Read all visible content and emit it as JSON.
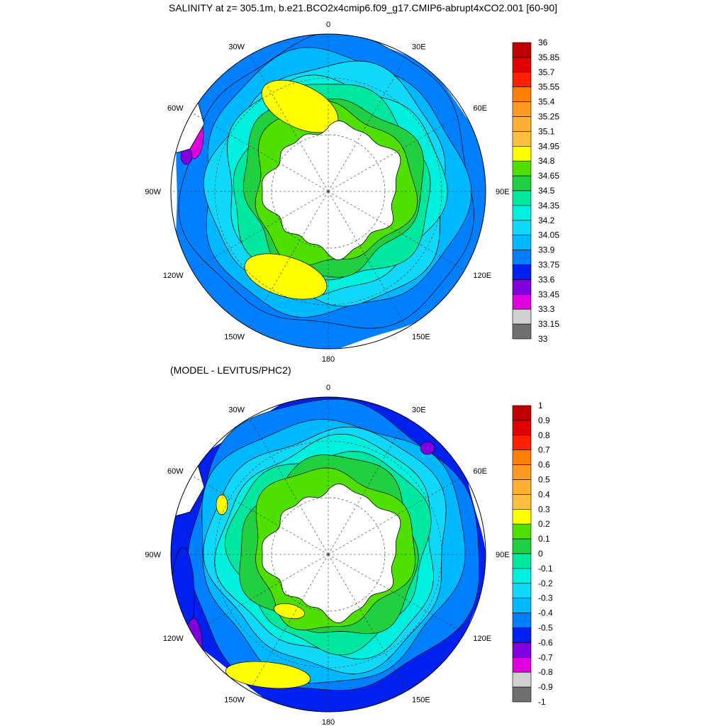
{
  "panels": [
    {
      "title": "SALINITY at z= 305.1m, b.e21.BCO2x4cmip6.f09_g17.CMIP6-abrupt4xCO2.001 [60-90]",
      "lon_labels": [
        "0",
        "30E",
        "60E",
        "90E",
        "120E",
        "150E",
        "180",
        "150W",
        "120W",
        "90W",
        "60W",
        "30W"
      ],
      "colorbar": {
        "labels": [
          "36",
          "35.85",
          "35.7",
          "35.55",
          "35.4",
          "35.25",
          "35.1",
          "34.95",
          "34.8",
          "34.65",
          "34.5",
          "34.35",
          "34.2",
          "34.05",
          "33.9",
          "33.75",
          "33.6",
          "33.45",
          "33.3",
          "33.15",
          "33"
        ]
      }
    },
    {
      "title": "(MODEL - LEVITUS/PHC2)",
      "lon_labels": [
        "0",
        "30E",
        "60E",
        "90E",
        "120E",
        "150E",
        "180",
        "150W",
        "120W",
        "90W",
        "60W",
        "30W"
      ],
      "colorbar": {
        "labels": [
          "1",
          "0.9",
          "0.8",
          "0.7",
          "0.6",
          "0.5",
          "0.4",
          "0.3",
          "0.2",
          "0.1",
          "0",
          "-0.1",
          "-0.2",
          "-0.3",
          "-0.4",
          "-0.5",
          "-0.6",
          "-0.7",
          "-0.8",
          "-0.9",
          "-1"
        ]
      }
    }
  ],
  "colors": {
    "palette_top_to_bottom": [
      "#c00000",
      "#e00000",
      "#ff2000",
      "#ff8000",
      "#ff9a20",
      "#ffb030",
      "#ffc040",
      "#ffff00",
      "#50e000",
      "#20d040",
      "#00e8a0",
      "#00f0e0",
      "#10d8f8",
      "#00b8ff",
      "#0080ff",
      "#0020f0",
      "#8000e0",
      "#e000e0",
      "#d0d0d0",
      "#707070"
    ],
    "land": "#ffffff"
  }
}
